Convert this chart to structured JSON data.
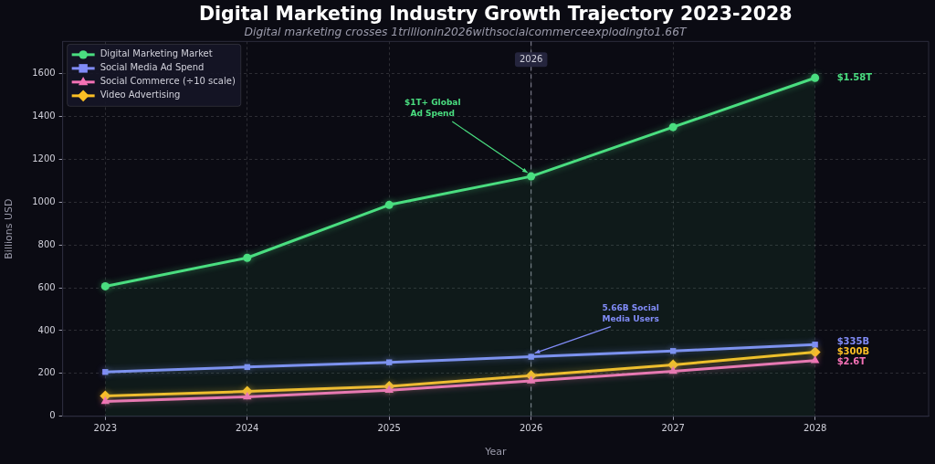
{
  "chart_data": {
    "type": "line",
    "title": "Digital Marketing Industry Growth Trajectory 2023-2028",
    "subtitle": "Digital marketing crosses 1trillionin2026withsocialcommerceexplodingto1.66T",
    "xlabel": "Year",
    "ylabel": "Billions USD",
    "x": [
      2023,
      2024,
      2025,
      2026,
      2027,
      2028
    ],
    "xlim": [
      2022.7,
      2028.8
    ],
    "xticks": [
      2023,
      2024,
      2025,
      2026,
      2027,
      2028
    ],
    "ylim": [
      0,
      1750
    ],
    "yticks": [
      0,
      200,
      400,
      600,
      800,
      1000,
      1200,
      1400,
      1600
    ],
    "grid": true,
    "legend": "top left",
    "series": [
      {
        "name": "Digital Marketing Market",
        "type": "area",
        "color": "#4ade80",
        "marker": "circle",
        "values": [
          607,
          740,
          987,
          1120,
          1350,
          1580
        ]
      },
      {
        "name": "Social Media Ad Spend",
        "type": "line",
        "color": "#818cf8",
        "marker": "square",
        "values": [
          207,
          230,
          252,
          278,
          305,
          335
        ]
      },
      {
        "name": "Social Commerce (÷10 scale)",
        "type": "line",
        "color": "#f472b6",
        "marker": "triangle",
        "values": [
          70,
          91,
          122,
          165,
          210,
          260
        ]
      },
      {
        "name": "Video Advertising",
        "type": "line",
        "color": "#fbbf24",
        "marker": "diamond",
        "values": [
          95,
          116,
          140,
          190,
          240,
          300
        ]
      }
    ],
    "ref_lines": [
      {
        "axis": "x",
        "value": 2026,
        "label": "2026",
        "color": "#8a8a9a",
        "line_style": "dashed"
      }
    ],
    "annotations": [
      {
        "text": "$1T+ Global\nAd Spend",
        "x": 2026,
        "y": 1120
      },
      {
        "text": "5.66B Social\nMedia Users",
        "x": 2026,
        "y": 278
      },
      "$1.58T",
      "$335B",
      "$300B",
      "$2.6T"
    ]
  }
}
